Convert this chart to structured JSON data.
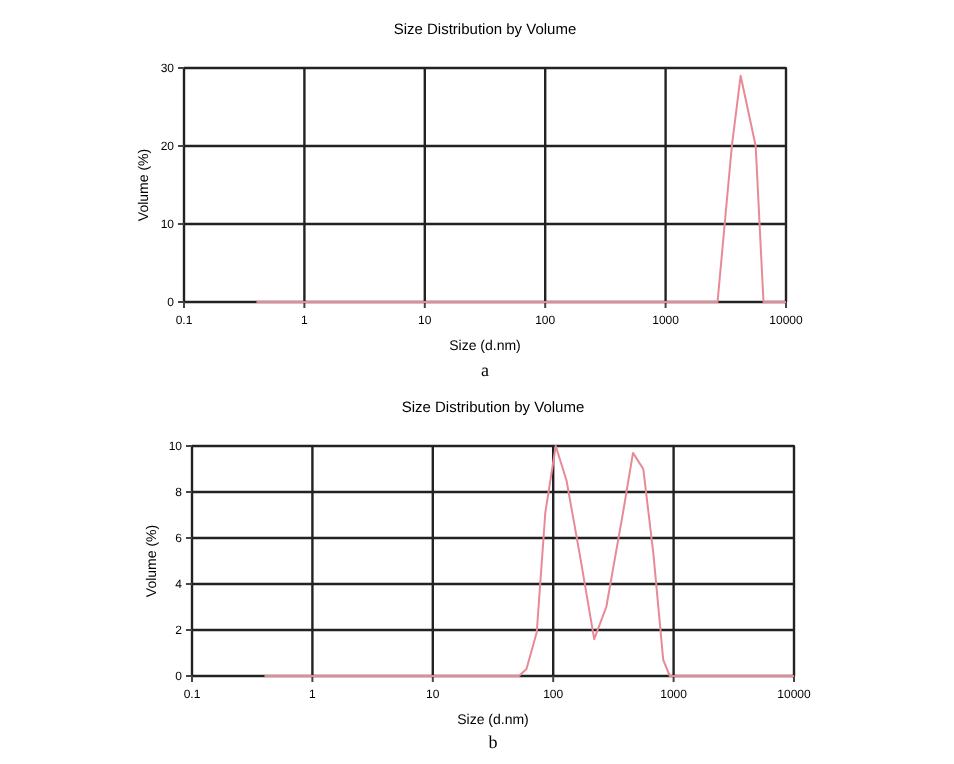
{
  "chart_data": [
    {
      "type": "line",
      "title": "Size Distribution by Volume",
      "xlabel": "Size (d.nm)",
      "ylabel": "Volume (%)",
      "annotations": [
        "a"
      ],
      "log": "x",
      "grid": true,
      "xlim": [
        0.1,
        10000
      ],
      "xticks": [
        0.1,
        1,
        10,
        100,
        1000,
        10000
      ],
      "ylim": [
        0,
        30
      ],
      "yticks": [
        0,
        10,
        20,
        30
      ],
      "series": [
        {
          "color": "#e88a96",
          "x": [
            0.4,
            1,
            10,
            100,
            1000,
            2700,
            3550,
            4200,
            5600,
            6500,
            10000
          ],
          "values": [
            0,
            0,
            0,
            0,
            0,
            0,
            20,
            29,
            20,
            0,
            0
          ]
        }
      ]
    },
    {
      "type": "line",
      "title": "Size Distribution by Volume",
      "xlabel": "Size (d.nm)",
      "ylabel": "Volume (%)",
      "annotations": [
        "b"
      ],
      "log": "x",
      "grid": true,
      "xlim": [
        0.1,
        10000
      ],
      "xticks": [
        0.1,
        1,
        10,
        100,
        1000,
        10000
      ],
      "ylim": [
        0,
        10
      ],
      "yticks": [
        0,
        2,
        4,
        6,
        8,
        10
      ],
      "series": [
        {
          "color": "#e88a96",
          "x": [
            0.4,
            1,
            10,
            52,
            60,
            73,
            86,
            105,
            129,
            166,
            219,
            276,
            380,
            460,
            560,
            680,
            820,
            930,
            10000
          ],
          "values": [
            0,
            0,
            0,
            0,
            0.3,
            1.9,
            7.1,
            10,
            8.5,
            5.3,
            1.6,
            3,
            7.1,
            9.7,
            9,
            5.3,
            0.7,
            0,
            0
          ]
        }
      ]
    }
  ]
}
